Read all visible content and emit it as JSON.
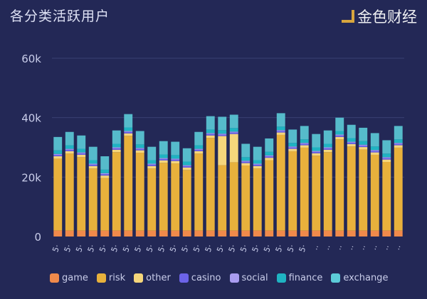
{
  "title": "各分类活跃用户",
  "watermark": "金色财经",
  "chart_data": {
    "type": "bar",
    "stacked": true,
    "title": "各分类活跃用户",
    "ylim": [
      0,
      60000
    ],
    "yticks": [
      "0",
      "20k",
      "40k",
      "60k"
    ],
    "ytick_values": [
      0,
      20000,
      40000,
      60000
    ],
    "grid": true,
    "legend_position": "bottom",
    "categories": [
      "5·",
      "5·",
      "5·",
      "5·",
      "5·",
      "5·",
      "5·",
      "5·",
      "5·",
      "5·",
      "5·",
      "5·",
      "5·",
      "5·",
      "5·",
      "5·",
      "5·",
      "5·",
      "5·",
      "5·",
      "5·",
      "5·",
      "..",
      "..",
      "..",
      "..",
      "..",
      "..",
      "..",
      ".."
    ],
    "series": [
      {
        "name": "game",
        "color": "#f08a4b",
        "values": [
          2000,
          2000,
          2000,
          2000,
          2000,
          2000,
          2000,
          2000,
          2000,
          2000,
          2000,
          2000,
          2000,
          2000,
          2000,
          2000,
          2000,
          2000,
          2000,
          2000,
          2000,
          2000,
          2000,
          2000,
          2000,
          2000,
          2000,
          2000,
          2000,
          2000
        ]
      },
      {
        "name": "risk",
        "color": "#e8b13c",
        "values": [
          24200,
          25900,
          24700,
          20900,
          17700,
          26400,
          31900,
          26200,
          20900,
          22800,
          22600,
          20400,
          25900,
          31200,
          22000,
          23000,
          21900,
          20900,
          23700,
          32200,
          26700,
          27900,
          25200,
          26400,
          30700,
          28300,
          27300,
          25500,
          23100,
          27900
        ]
      },
      {
        "name": "other",
        "color": "#f5d67b",
        "values": [
          800,
          800,
          800,
          800,
          800,
          800,
          800,
          800,
          800,
          800,
          800,
          800,
          800,
          800,
          9800,
          9500,
          800,
          800,
          800,
          800,
          800,
          800,
          800,
          800,
          800,
          800,
          800,
          800,
          800,
          800
        ]
      },
      {
        "name": "casino",
        "color": "#6c63e8",
        "values": [
          500,
          500,
          500,
          500,
          500,
          500,
          500,
          500,
          500,
          500,
          500,
          500,
          500,
          500,
          500,
          500,
          500,
          500,
          500,
          500,
          500,
          500,
          500,
          500,
          500,
          500,
          500,
          500,
          500,
          500
        ]
      },
      {
        "name": "social",
        "color": "#a99cf0",
        "values": [
          300,
          300,
          300,
          300,
          300,
          300,
          300,
          300,
          300,
          300,
          300,
          300,
          300,
          300,
          300,
          300,
          300,
          300,
          300,
          300,
          300,
          300,
          300,
          300,
          300,
          300,
          300,
          300,
          300,
          300
        ]
      },
      {
        "name": "finance",
        "color": "#1fb3c2",
        "values": [
          1200,
          1200,
          1200,
          1200,
          1200,
          1200,
          1200,
          1200,
          1200,
          1200,
          1200,
          1200,
          1200,
          1200,
          1200,
          1200,
          1200,
          1200,
          1200,
          1200,
          1200,
          1200,
          1200,
          1200,
          1200,
          1200,
          1200,
          1200,
          1200,
          1200
        ]
      },
      {
        "name": "exchange",
        "color": "#5ccbd8",
        "values": [
          4500,
          4500,
          4500,
          4500,
          4500,
          4500,
          4500,
          4500,
          4500,
          4500,
          4500,
          4500,
          4500,
          4500,
          4500,
          4500,
          4500,
          4500,
          4500,
          4500,
          4500,
          4500,
          4500,
          4500,
          4500,
          4500,
          4500,
          4500,
          4500,
          4500
        ]
      }
    ]
  }
}
